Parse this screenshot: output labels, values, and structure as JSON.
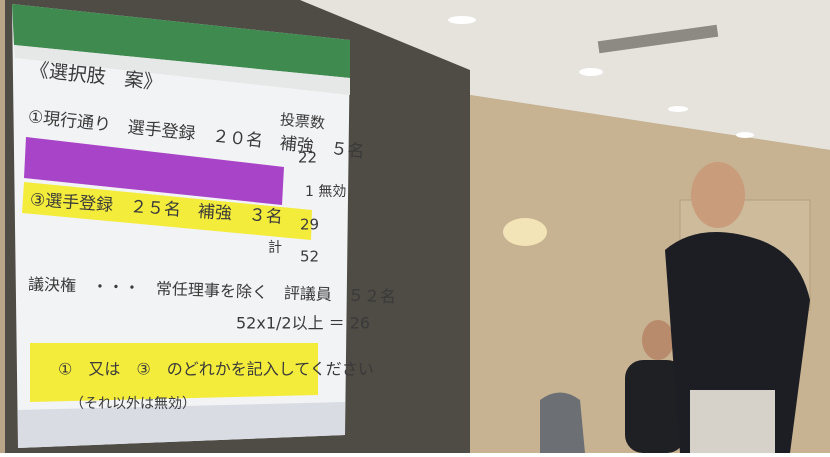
{
  "slide": {
    "title": "《選択肢　案》",
    "option_1": "①現行通り　選手登録　２０名　補強　５名",
    "votes_header": "投票数",
    "votes_1": "22",
    "invalid": "1 無効",
    "option_3": "③選手登録　２５名　補強　３名",
    "votes_3": "29",
    "total_label": "計",
    "total": "52",
    "voting_rights": "議決権　・・・　常任理事を除く　評議員　５２名",
    "majority": "52x1/2以上 ＝ 26",
    "instruction": "①　又は　③　のどれかを記入してください",
    "note": "（それ以外は無効）"
  }
}
